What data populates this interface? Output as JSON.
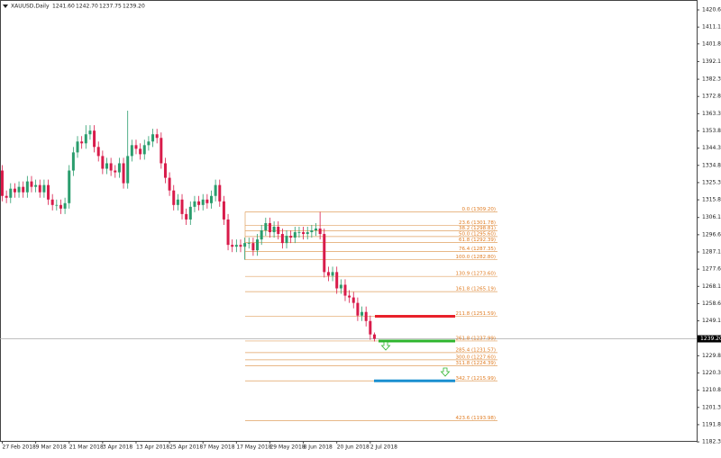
{
  "chart_data": {
    "type": "candlestick",
    "title": "XAUUSD,Daily",
    "header_values": [
      "1241.60",
      "1242.70",
      "1237.75",
      "1239.20"
    ],
    "up_color": "#2a9d6d",
    "down_color": "#d81b4a",
    "categories": [
      "27 Feb 2018",
      null,
      null,
      null,
      null,
      null,
      null,
      null,
      "9 Mar 2018",
      null,
      null,
      null,
      null,
      null,
      null,
      null,
      "21 Mar 2018",
      null,
      null,
      null,
      null,
      null,
      null,
      null,
      "3 Apr 2018",
      null,
      null,
      null,
      null,
      null,
      null,
      null,
      "13 Apr 2018",
      null,
      null,
      null,
      null,
      null,
      null,
      null,
      "25 Apr 2018",
      null,
      null,
      null,
      null,
      null,
      null,
      null,
      "7 May 2018",
      null,
      null,
      null,
      null,
      null,
      null,
      null,
      "17 May 2018",
      null,
      null,
      null,
      null,
      null,
      null,
      null,
      "29 May 2018",
      null,
      null,
      null,
      null,
      null,
      null,
      null,
      "8 Jun 2018",
      null,
      null,
      null,
      null,
      null,
      null,
      null,
      "20 Jun 2018",
      null,
      null,
      null,
      null,
      null,
      null,
      null,
      "2 Jul 2018",
      null
    ],
    "open": [
      1332,
      1318,
      1317,
      1322,
      1320,
      1323,
      1320,
      1326,
      1323,
      1324,
      1320,
      1324,
      1316,
      1313,
      1313,
      1311,
      1314,
      1332,
      1342,
      1348,
      1347,
      1352,
      1354,
      1345,
      1340,
      1333,
      1336,
      1332,
      1331,
      1336,
      1325,
      1340,
      1346,
      1344,
      1341,
      1346,
      1348,
      1352,
      1350,
      1336,
      1328,
      1321,
      1313,
      1316,
      1308,
      1305,
      1312,
      1315,
      1313,
      1316,
      1314,
      1318,
      1324,
      1315,
      1305,
      1291,
      1290,
      1291,
      1290,
      1292,
      1292,
      1288,
      1294,
      1299,
      1303,
      1298,
      1301,
      1297,
      1292,
      1296,
      1295,
      1298,
      1298,
      1297,
      1298,
      1299,
      1300,
      1297,
      1276,
      1274,
      1276,
      1267,
      1269,
      1263,
      1262,
      1259,
      1252,
      1254,
      1249,
      1241.6
    ],
    "high": [
      1335,
      1321,
      1325,
      1325,
      1326,
      1326,
      1329,
      1329,
      1327,
      1327,
      1327,
      1327,
      1319,
      1316,
      1316,
      1317,
      1335,
      1345,
      1351,
      1351,
      1357,
      1357,
      1357,
      1348,
      1343,
      1339,
      1339,
      1335,
      1339,
      1339,
      1365,
      1349,
      1349,
      1347,
      1349,
      1351,
      1355,
      1355,
      1353,
      1339,
      1331,
      1324,
      1319,
      1319,
      1311,
      1315,
      1318,
      1318,
      1319,
      1319,
      1321,
      1327,
      1327,
      1318,
      1308,
      1294,
      1294,
      1294,
      1295,
      1295,
      1295,
      1297,
      1302,
      1306,
      1306,
      1304,
      1304,
      1300,
      1299,
      1299,
      1301,
      1301,
      1301,
      1301,
      1302,
      1303,
      1309.2,
      1300,
      1279,
      1279,
      1279,
      1272,
      1272,
      1266,
      1265,
      1262,
      1257,
      1257,
      1252,
      1242.7
    ],
    "low": [
      1315,
      1314,
      1314,
      1317,
      1317,
      1317,
      1317,
      1320,
      1320,
      1317,
      1317,
      1313,
      1310,
      1310,
      1308,
      1308,
      1311,
      1329,
      1339,
      1344,
      1344,
      1349,
      1342,
      1337,
      1330,
      1330,
      1329,
      1328,
      1328,
      1322,
      1322,
      1337,
      1341,
      1338,
      1338,
      1343,
      1345,
      1347,
      1333,
      1325,
      1318,
      1310,
      1310,
      1305,
      1302,
      1302,
      1309,
      1310,
      1310,
      1311,
      1311,
      1315,
      1312,
      1302,
      1288,
      1287,
      1287,
      1287,
      1282.8,
      1289,
      1285,
      1285,
      1291,
      1296,
      1295,
      1295,
      1294,
      1289,
      1289,
      1292,
      1292,
      1295,
      1294,
      1294,
      1295,
      1296,
      1294,
      1273,
      1271,
      1271,
      1264,
      1264,
      1260,
      1259,
      1256,
      1249,
      1249,
      1246,
      1238.6,
      1237.75
    ],
    "close": [
      1318,
      1317,
      1322,
      1320,
      1323,
      1320,
      1326,
      1323,
      1324,
      1320,
      1324,
      1316,
      1313,
      1313,
      1311,
      1314,
      1332,
      1342,
      1348,
      1347,
      1352,
      1354,
      1345,
      1340,
      1333,
      1336,
      1332,
      1331,
      1336,
      1325,
      1340,
      1346,
      1344,
      1341,
      1346,
      1348,
      1352,
      1350,
      1336,
      1328,
      1321,
      1313,
      1316,
      1308,
      1305,
      1312,
      1315,
      1313,
      1316,
      1314,
      1318,
      1324,
      1315,
      1305,
      1291,
      1290,
      1291,
      1290,
      1292,
      1292,
      1288,
      1294,
      1299,
      1303,
      1298,
      1301,
      1297,
      1292,
      1296,
      1295,
      1298,
      1298,
      1297,
      1298,
      1299,
      1300,
      1297,
      1276,
      1274,
      1276,
      1267,
      1269,
      1263,
      1262,
      1259,
      1252,
      1254,
      1249,
      1241.6,
      1239.2
    ],
    "ylim": [
      1182.88,
      1426.06
    ],
    "yticks": [
      {
        "value": 1420.6,
        "label": "1420.60"
      },
      {
        "value": 1411.1,
        "label": "1411.10"
      },
      {
        "value": 1401.85,
        "label": "1401.85"
      },
      {
        "value": 1392.1,
        "label": "1392.10"
      },
      {
        "value": 1382.35,
        "label": "1382.35"
      },
      {
        "value": 1372.85,
        "label": "1372.85"
      },
      {
        "value": 1363.35,
        "label": "1363.35"
      },
      {
        "value": 1353.85,
        "label": "1353.85"
      },
      {
        "value": 1344.35,
        "label": "1344.35"
      },
      {
        "value": 1334.85,
        "label": "1334.85"
      },
      {
        "value": 1325.35,
        "label": "1325.35"
      },
      {
        "value": 1315.85,
        "label": "1315.85"
      },
      {
        "value": 1306.1,
        "label": "1306.10"
      },
      {
        "value": 1296.6,
        "label": "1296.60"
      },
      {
        "value": 1287.1,
        "label": "1287.10"
      },
      {
        "value": 1277.6,
        "label": "1277.60"
      },
      {
        "value": 1268.1,
        "label": "1268.10"
      },
      {
        "value": 1258.6,
        "label": "1258.60"
      },
      {
        "value": 1249.1,
        "label": "1249.10"
      },
      {
        "value": 1229.85,
        "label": "1229.85"
      },
      {
        "value": 1220.35,
        "label": "1220.35"
      },
      {
        "value": 1210.85,
        "label": "1210.85"
      },
      {
        "value": 1201.35,
        "label": "1201.35"
      },
      {
        "value": 1191.85,
        "label": "1191.85"
      },
      {
        "value": 1182.35,
        "label": "1182.35"
      }
    ],
    "current_price": {
      "value": 1239.2,
      "label": "1239.20"
    },
    "fib_color": "#e0a060",
    "fib_levels": [
      {
        "label": "0.0 (1309.20)",
        "value": 1309.2
      },
      {
        "label": "23.6 (1301.78)",
        "value": 1301.78
      },
      {
        "label": "38.2 (1298.81)",
        "value": 1298.81
      },
      {
        "label": "50.0 (1295.60)",
        "value": 1295.6
      },
      {
        "label": "61.8 (1292.39)",
        "value": 1292.39
      },
      {
        "label": "76.4 (1287.35)",
        "value": 1287.35
      },
      {
        "label": "100.0 (1282.80)",
        "value": 1282.8
      },
      {
        "label": "130.9 (1273.60)",
        "value": 1273.6
      },
      {
        "label": "161.8 (1265.19)",
        "value": 1265.19
      },
      {
        "label": "211.8 (1251.59)",
        "value": 1251.59
      },
      {
        "label": "261.8 (1237.99)",
        "value": 1237.99
      },
      {
        "label": "285.4 (1231.57)",
        "value": 1231.57
      },
      {
        "label": "300.0 (1227.60)",
        "value": 1227.6
      },
      {
        "label": "311.8 (1224.39)",
        "value": 1224.39
      },
      {
        "label": "342.7 (1215.99)",
        "value": 1215.99
      },
      {
        "label": "423.6 (1193.98)",
        "value": 1193.98
      }
    ],
    "levels": [
      {
        "value": 1251.59,
        "color": "#e8202a"
      },
      {
        "value": 1237.99,
        "color": "#2db52d"
      },
      {
        "value": 1215.99,
        "color": "#1a8fd0"
      }
    ]
  }
}
